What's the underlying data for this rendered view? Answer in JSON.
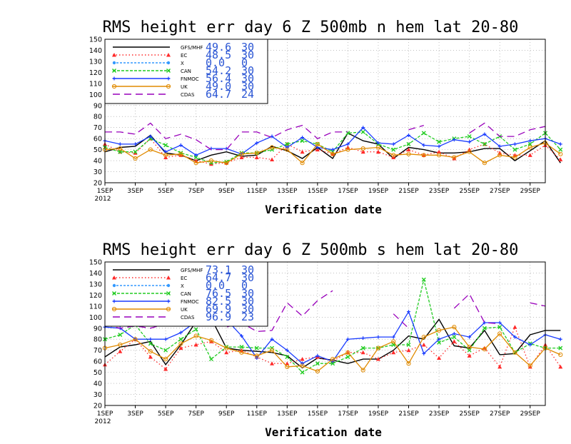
{
  "chart_data": [
    {
      "type": "line",
      "title": "RMS height err   day 6  Z 500mb   n hem   lat 20-80",
      "xlabel": "Verification date",
      "ylabel": "",
      "ylim": [
        20,
        150
      ],
      "yticks": [
        20,
        30,
        40,
        50,
        60,
        70,
        80,
        90,
        100,
        110,
        120,
        130,
        140,
        150
      ],
      "xlim": [
        1,
        30
      ],
      "xtick_days": [
        1,
        3,
        5,
        7,
        9,
        11,
        13,
        15,
        17,
        19,
        21,
        23,
        25,
        27,
        29
      ],
      "xtick_labels": [
        "1SEP",
        "3SEP",
        "5SEP",
        "7SEP",
        "9SEP",
        "11SEP",
        "13SEP",
        "15SEP",
        "17SEP",
        "19SEP",
        "21SEP",
        "23SEP",
        "25SEP",
        "27SEP",
        "29SEP"
      ],
      "year_label": "2012",
      "grid": true,
      "legend_position": "top-left",
      "series": [
        {
          "name": "GFS/MHF",
          "mean": "49.6",
          "count": "30",
          "color": "#000000",
          "dash": "",
          "marker": "none",
          "values": [
            48,
            52,
            53,
            63,
            47,
            45,
            40,
            45,
            48,
            44,
            45,
            53,
            49,
            42,
            52,
            42,
            65,
            58,
            55,
            42,
            52,
            50,
            47,
            47,
            48,
            51,
            51,
            40,
            49,
            58,
            38
          ]
        },
        {
          "name": "EC",
          "mean": "48.5",
          "count": "30",
          "color": "#ff2a2a",
          "dash": "1.5,3",
          "marker": "triangle",
          "values": [
            55,
            48,
            47,
            60,
            43,
            45,
            40,
            37,
            38,
            43,
            43,
            41,
            55,
            48,
            50,
            46,
            52,
            48,
            48,
            43,
            50,
            45,
            48,
            42,
            50,
            55,
            47,
            45,
            45,
            54,
            41
          ]
        },
        {
          "name": "X",
          "mean": "0.0",
          "count": "0",
          "color": "#3399ff",
          "dash": "3,2",
          "marker": "dot",
          "values": []
        },
        {
          "name": "CAN",
          "mean": "54.2",
          "count": "30",
          "color": "#22cc22",
          "dash": "4,2",
          "marker": "x",
          "values": [
            52,
            48,
            48,
            60,
            54,
            47,
            43,
            38,
            39,
            47,
            47,
            50,
            55,
            58,
            55,
            48,
            65,
            66,
            55,
            50,
            55,
            65,
            57,
            60,
            62,
            55,
            62,
            50,
            55,
            65,
            50
          ]
        },
        {
          "name": "FNMOC",
          "mean": "56.4",
          "count": "30",
          "color": "#1a3cff",
          "dash": "",
          "marker": "plus",
          "values": [
            58,
            55,
            55,
            62,
            48,
            54,
            45,
            51,
            51,
            46,
            56,
            62,
            52,
            61,
            52,
            50,
            55,
            70,
            56,
            55,
            63,
            54,
            53,
            59,
            57,
            64,
            53,
            55,
            58,
            60,
            55
          ]
        },
        {
          "name": "UK",
          "mean": "49.0",
          "count": "30",
          "color": "#e08a00",
          "dash": "",
          "marker": "circle",
          "values": [
            50,
            51,
            42,
            50,
            45,
            46,
            38,
            40,
            38,
            46,
            47,
            52,
            50,
            38,
            55,
            46,
            50,
            51,
            52,
            45,
            46,
            45,
            45,
            43,
            48,
            38,
            45,
            43,
            52,
            56,
            46
          ]
        },
        {
          "name": "CDAS",
          "mean": "64.7",
          "count": "24",
          "color": "#9900bb",
          "dash": "10,6",
          "marker": "none",
          "values": [
            66,
            66,
            64,
            74,
            60,
            64,
            59,
            50,
            50,
            66,
            66,
            61,
            68,
            72,
            60,
            66,
            66,
            null,
            null,
            null,
            68,
            72,
            null,
            null,
            65,
            74,
            62,
            62,
            68,
            71,
            null
          ]
        }
      ]
    },
    {
      "type": "line",
      "title": "RMS height err   day 6  Z 500mb   s hem   lat 20-80",
      "xlabel": "Verification date",
      "ylabel": "",
      "ylim": [
        20,
        150
      ],
      "yticks": [
        20,
        30,
        40,
        50,
        60,
        70,
        80,
        90,
        100,
        110,
        120,
        130,
        140,
        150
      ],
      "xlim": [
        1,
        30
      ],
      "xtick_days": [
        1,
        3,
        5,
        7,
        9,
        11,
        13,
        15,
        17,
        19,
        21,
        23,
        25,
        27,
        29
      ],
      "xtick_labels": [
        "1SEP",
        "3SEP",
        "5SEP",
        "7SEP",
        "9SEP",
        "11SEP",
        "13SEP",
        "15SEP",
        "17SEP",
        "19SEP",
        "21SEP",
        "23SEP",
        "25SEP",
        "27SEP",
        "29SEP"
      ],
      "year_label": "2012",
      "grid": true,
      "legend_position": "top-left",
      "series": [
        {
          "name": "GFS/MHF",
          "mean": "73.1",
          "count": "30",
          "color": "#000000",
          "dash": "",
          "marker": "none",
          "values": [
            64,
            73,
            75,
            78,
            57,
            75,
            96,
            99,
            72,
            70,
            69,
            68,
            65,
            54,
            63,
            61,
            58,
            62,
            62,
            70,
            83,
            80,
            98,
            74,
            72,
            88,
            66,
            67,
            84,
            88,
            88
          ]
        },
        {
          "name": "EC",
          "mean": "64.7",
          "count": "30",
          "color": "#ff2a2a",
          "dash": "1.5,3",
          "marker": "triangle",
          "values": [
            57,
            69,
            80,
            64,
            53,
            72,
            75,
            78,
            68,
            70,
            64,
            58,
            58,
            62,
            64,
            60,
            68,
            68,
            62,
            68,
            70,
            75,
            63,
            78,
            65,
            72,
            55,
            91,
            55,
            75,
            55
          ]
        },
        {
          "name": "X",
          "mean": "0.0",
          "count": "0",
          "color": "#3399ff",
          "dash": "3,2",
          "marker": "dot",
          "values": []
        },
        {
          "name": "CAN",
          "mean": "76.5",
          "count": "30",
          "color": "#22cc22",
          "dash": "4,2",
          "marker": "x",
          "values": [
            80,
            84,
            93,
            76,
            70,
            80,
            89,
            62,
            73,
            73,
            72,
            72,
            64,
            50,
            58,
            58,
            64,
            72,
            72,
            75,
            75,
            134,
            77,
            82,
            70,
            90,
            91,
            68,
            76,
            72,
            72
          ]
        },
        {
          "name": "FNMOC",
          "mean": "82.5",
          "count": "30",
          "color": "#1a3cff",
          "dash": "",
          "marker": "plus",
          "values": [
            91,
            90,
            80,
            80,
            80,
            86,
            96,
            99,
            98,
            83,
            63,
            80,
            70,
            58,
            65,
            60,
            80,
            81,
            82,
            82,
            105,
            67,
            80,
            85,
            82,
            95,
            95,
            82,
            75,
            84,
            80
          ]
        },
        {
          "name": "UK",
          "mean": "69.9",
          "count": "30",
          "color": "#e08a00",
          "dash": "",
          "marker": "circle",
          "values": [
            72,
            75,
            80,
            69,
            62,
            76,
            83,
            79,
            72,
            68,
            65,
            70,
            55,
            56,
            51,
            62,
            68,
            52,
            72,
            78,
            58,
            82,
            88,
            91,
            73,
            71,
            85,
            68,
            56,
            72,
            66
          ]
        },
        {
          "name": "CDAS",
          "mean": "96.9",
          "count": "23",
          "color": "#9900bb",
          "dash": "10,6",
          "marker": "none",
          "values": [
            93,
            90,
            92,
            90,
            94,
            96,
            96,
            98,
            91,
            95,
            87,
            88,
            113,
            101,
            115,
            124,
            null,
            null,
            null,
            103,
            90,
            null,
            null,
            108,
            121,
            95,
            94,
            null,
            113,
            110,
            null
          ]
        }
      ]
    }
  ]
}
